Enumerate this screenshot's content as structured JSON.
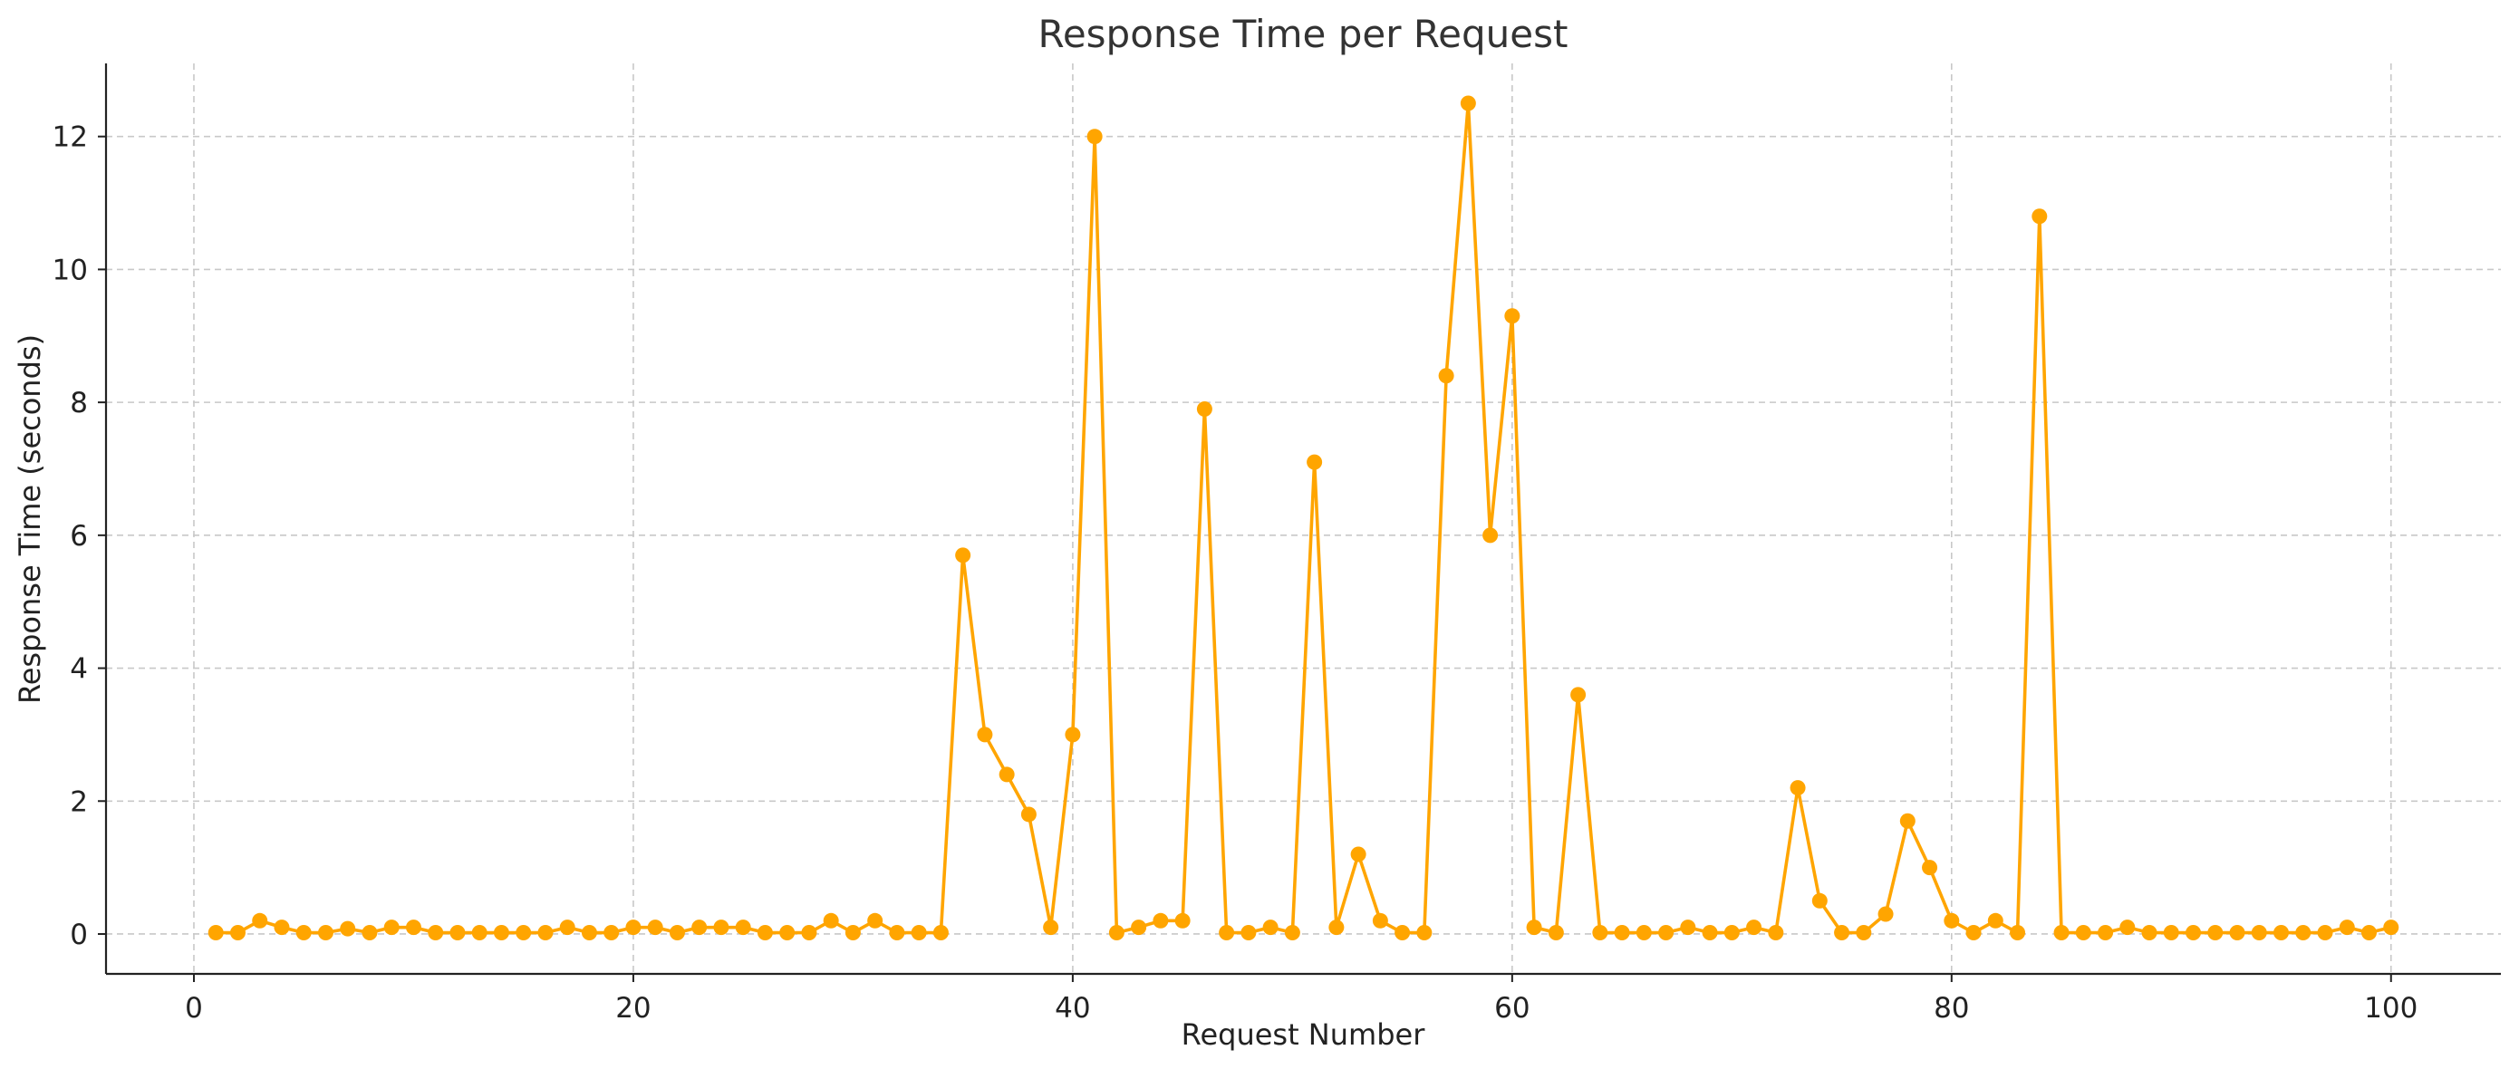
{
  "chart_data": {
    "type": "line",
    "title": "Response Time per Request",
    "xlabel": "Request Number",
    "ylabel": "Response Time (seconds)",
    "xlim": [
      -4,
      105
    ],
    "ylim": [
      -0.6,
      13.1
    ],
    "xticks": [
      0,
      20,
      40,
      60,
      80,
      100
    ],
    "yticks": [
      0,
      2,
      4,
      6,
      8,
      10,
      12
    ],
    "grid": true,
    "series": [
      {
        "color": "#FFA500",
        "marker": "circle",
        "x": [
          1,
          2,
          3,
          4,
          5,
          6,
          7,
          8,
          9,
          10,
          11,
          12,
          13,
          14,
          15,
          16,
          17,
          18,
          19,
          20,
          21,
          22,
          23,
          24,
          25,
          26,
          27,
          28,
          29,
          30,
          31,
          32,
          33,
          34,
          35,
          36,
          37,
          38,
          39,
          40,
          41,
          42,
          43,
          44,
          45,
          46,
          47,
          48,
          49,
          50,
          51,
          52,
          53,
          54,
          55,
          56,
          57,
          58,
          59,
          60,
          61,
          62,
          63,
          64,
          65,
          66,
          67,
          68,
          69,
          70,
          71,
          72,
          73,
          74,
          75,
          76,
          77,
          78,
          79,
          80,
          81,
          82,
          83,
          84,
          85,
          86,
          87,
          88,
          89,
          90,
          91,
          92,
          93,
          94,
          95,
          96,
          97,
          98,
          99,
          100
        ],
        "values": [
          0.02,
          0.02,
          0.2,
          0.1,
          0.02,
          0.02,
          0.08,
          0.02,
          0.1,
          0.1,
          0.02,
          0.02,
          0.02,
          0.02,
          0.02,
          0.02,
          0.1,
          0.02,
          0.02,
          0.1,
          0.1,
          0.02,
          0.1,
          0.1,
          0.1,
          0.02,
          0.02,
          0.02,
          0.2,
          0.02,
          0.2,
          0.02,
          0.02,
          0.02,
          5.7,
          3.0,
          2.4,
          1.8,
          0.1,
          3.0,
          12.0,
          0.02,
          0.1,
          0.2,
          0.2,
          7.9,
          0.02,
          0.02,
          0.1,
          0.02,
          7.1,
          0.1,
          1.2,
          0.2,
          0.02,
          0.02,
          8.4,
          12.5,
          6.0,
          9.3,
          0.1,
          0.02,
          3.6,
          0.02,
          0.02,
          0.02,
          0.02,
          0.1,
          0.02,
          0.02,
          0.1,
          0.02,
          2.2,
          0.5,
          0.02,
          0.02,
          0.3,
          1.7,
          1.0,
          0.2,
          0.02,
          0.2,
          0.02,
          10.8,
          0.02,
          0.02,
          0.02,
          0.1,
          0.02,
          0.02,
          0.02,
          0.02,
          0.02,
          0.02,
          0.02,
          0.02,
          0.02,
          0.1,
          0.02,
          0.1
        ]
      }
    ]
  }
}
